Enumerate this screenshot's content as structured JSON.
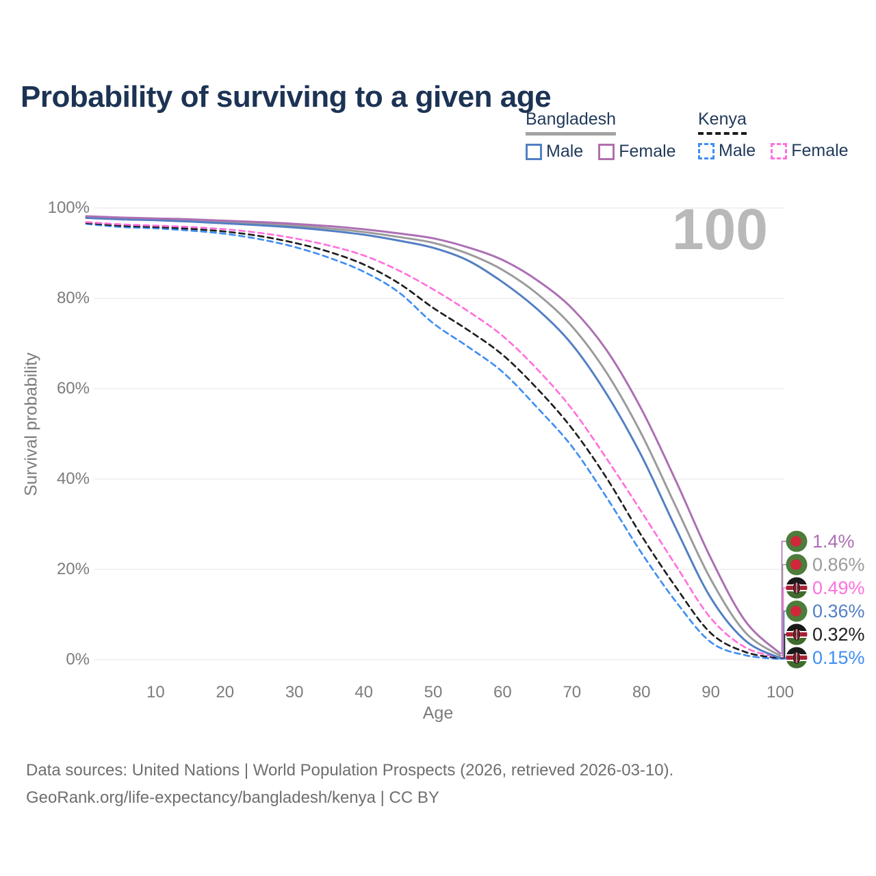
{
  "title": "Probability of surviving to a given age",
  "watermark": "100",
  "legend": {
    "groups": [
      {
        "label": "Bangladesh",
        "line_style": "solid",
        "line_color": "#a3a3a3",
        "items": [
          {
            "label": "Male",
            "color": "#537fc3"
          },
          {
            "label": "Female",
            "color": "#b06fae"
          }
        ]
      },
      {
        "label": "Kenya",
        "line_style": "dashed",
        "line_color": "#1a1a1a",
        "items": [
          {
            "label": "Male",
            "color": "#3f8ef3"
          },
          {
            "label": "Female",
            "color": "#ff70dd"
          }
        ]
      }
    ]
  },
  "chart_data": {
    "type": "line",
    "title": "Probability of surviving to a given age",
    "xlabel": "Age",
    "ylabel": "Survival probability",
    "xlim": [
      0,
      100
    ],
    "ylim": [
      0,
      100
    ],
    "x_ticks": [
      10,
      20,
      30,
      40,
      50,
      60,
      70,
      80,
      90,
      100
    ],
    "y_ticks": [
      {
        "value": 0,
        "label": "0%"
      },
      {
        "value": 20,
        "label": "20%"
      },
      {
        "value": 40,
        "label": "40%"
      },
      {
        "value": 60,
        "label": "60%"
      },
      {
        "value": 80,
        "label": "80%"
      },
      {
        "value": 100,
        "label": "100%"
      }
    ],
    "grid": "horizontal",
    "legend_position": "top-right",
    "ages": [
      0,
      5,
      10,
      15,
      20,
      25,
      30,
      35,
      40,
      45,
      50,
      55,
      60,
      65,
      70,
      75,
      80,
      85,
      90,
      95,
      100
    ],
    "series": [
      {
        "name": "Bangladesh Female",
        "country": "bangladesh",
        "sex": "female",
        "color": "#ad6fb3",
        "dashed": false,
        "end_label": "1.4%",
        "values": [
          98.2,
          97.9,
          97.7,
          97.5,
          97.2,
          96.9,
          96.5,
          96.0,
          95.3,
          94.4,
          93.3,
          91.3,
          88.5,
          84.0,
          77.8,
          68.5,
          55.5,
          39.5,
          22.5,
          8.5,
          1.4
        ]
      },
      {
        "name": "Bangladesh",
        "country": "bangladesh",
        "sex": "both",
        "color": "#9b9b9b",
        "dashed": false,
        "end_label": "0.86%",
        "values": [
          98.0,
          97.7,
          97.5,
          97.2,
          96.9,
          96.5,
          96.1,
          95.5,
          94.7,
          93.6,
          92.3,
          89.9,
          86.3,
          81.0,
          73.8,
          63.5,
          50.0,
          33.8,
          17.8,
          6.0,
          0.86
        ]
      },
      {
        "name": "Kenya Female",
        "country": "kenya",
        "sex": "female",
        "color": "#ff70dd",
        "dashed": true,
        "end_label": "0.49%",
        "values": [
          96.9,
          96.4,
          96.1,
          95.8,
          95.3,
          94.5,
          93.3,
          91.7,
          89.5,
          86.2,
          82.0,
          77.2,
          71.7,
          64.3,
          55.5,
          44.5,
          32.8,
          20.8,
          9.2,
          2.7,
          0.49
        ]
      },
      {
        "name": "Bangladesh Male",
        "country": "bangladesh",
        "sex": "male",
        "color": "#537fc3",
        "dashed": false,
        "end_label": "0.36%",
        "values": [
          97.8,
          97.5,
          97.3,
          97.0,
          96.6,
          96.2,
          95.7,
          95.0,
          94.1,
          92.8,
          91.2,
          88.4,
          83.6,
          77.6,
          69.8,
          58.8,
          45.2,
          29.0,
          13.7,
          4.2,
          0.36
        ]
      },
      {
        "name": "Kenya",
        "country": "kenya",
        "sex": "both",
        "color": "#1f1f1f",
        "dashed": true,
        "end_label": "0.32%",
        "values": [
          96.7,
          96.1,
          95.8,
          95.4,
          94.8,
          93.8,
          92.3,
          90.3,
          87.5,
          83.4,
          77.9,
          73.0,
          67.5,
          60.0,
          51.2,
          40.2,
          27.5,
          16.0,
          5.9,
          1.7,
          0.32
        ]
      },
      {
        "name": "Kenya Male",
        "country": "kenya",
        "sex": "male",
        "color": "#3f8ef3",
        "dashed": true,
        "end_label": "0.15%",
        "values": [
          96.5,
          95.8,
          95.5,
          95.0,
          94.3,
          93.1,
          91.4,
          89.0,
          85.9,
          81.4,
          74.5,
          69.3,
          63.7,
          55.8,
          47.2,
          35.9,
          23.7,
          12.8,
          3.9,
          1.0,
          0.15
        ]
      }
    ]
  },
  "flag_colors": {
    "bangladesh_green": "#4d7c3b",
    "bangladesh_red": "#d2263b",
    "kenya_black": "#191919",
    "kenya_red": "#a91f32",
    "kenya_green": "#3f6c2c",
    "kenya_shield": "#8e1a28"
  },
  "colors": {
    "title": "#1c3354",
    "legend_text": "#213a5a",
    "axis_text": "#7c7c7c",
    "gridline": "#e9e9e9",
    "watermark": "#b9b9b9",
    "footer_text": "#6e6e6e"
  },
  "footer": {
    "line1": "Data sources: United Nations | World Population Prospects (2026, retrieved 2026-03-10).",
    "line2": "GeoRank.org/life-expectancy/bangladesh/kenya | CC BY"
  }
}
